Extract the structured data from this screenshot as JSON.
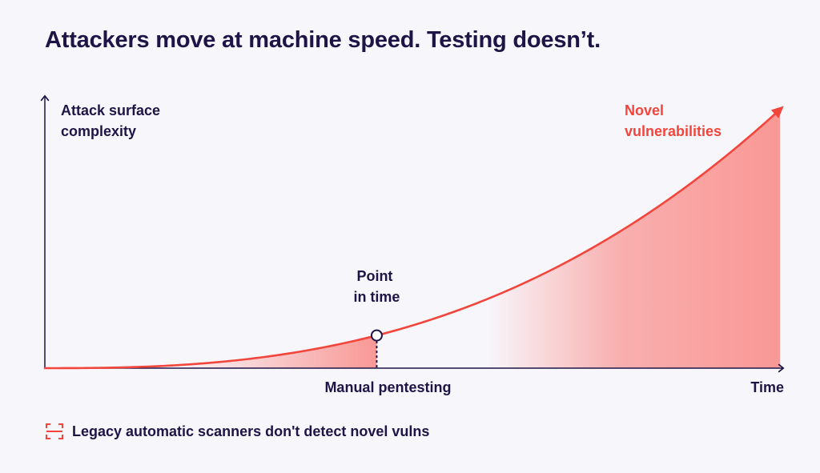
{
  "title": "Attackers move at machine speed. Testing doesn’t.",
  "legend": {
    "icon": "scanner-bracket-icon",
    "label": "Legacy automatic scanners don't detect novel vulns"
  },
  "colors": {
    "accent": "#f2453b",
    "fill": "#f99895",
    "text": "#1e1446",
    "axis": "#1e1446",
    "background": "#f7f6fb"
  },
  "chart_data": {
    "type": "area",
    "title": "Attackers move at machine speed. Testing doesn’t.",
    "ylabel_lines": [
      "Attack surface",
      "complexity"
    ],
    "xlabel": "Time",
    "curve_label_lines": [
      "Novel",
      "vulnerabilities"
    ],
    "marker": {
      "label_lines": [
        "Point",
        "in time"
      ],
      "x_label": "Manual pentesting",
      "x": 0.45
    },
    "xlim": [
      0,
      1
    ],
    "ylim": [
      0,
      1
    ],
    "curve": {
      "exponent": 2.6,
      "end_y": 1
    },
    "shaded_regions": [
      {
        "from": 0.18,
        "to": 0.45,
        "fade": "left-to-right"
      },
      {
        "from": 0.6,
        "to": 0.997,
        "fade": "left-to-right"
      }
    ],
    "grid": false
  }
}
